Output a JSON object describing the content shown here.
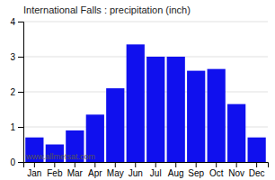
{
  "chart_data": {
    "type": "bar",
    "title": "International Falls : precipitation (inch)",
    "categories": [
      "Jan",
      "Feb",
      "Mar",
      "Apr",
      "May",
      "Jun",
      "Jul",
      "Aug",
      "Sep",
      "Oct",
      "Nov",
      "Dec"
    ],
    "values": [
      0.7,
      0.5,
      0.9,
      1.35,
      2.1,
      3.35,
      3.0,
      3.0,
      2.6,
      2.65,
      1.65,
      0.7
    ],
    "color": "#1010ee",
    "ylim": [
      0,
      4
    ],
    "yticks": [
      0,
      1,
      2,
      3,
      4
    ],
    "grid": true,
    "annotations": [
      "www.allmetsat.com"
    ]
  }
}
